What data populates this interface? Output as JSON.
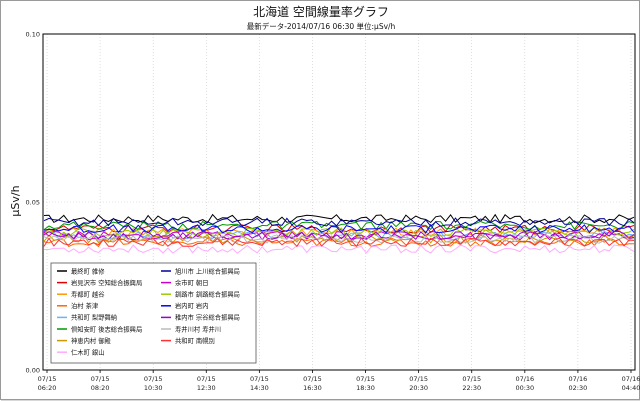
{
  "chart_data": {
    "type": "line",
    "title": "北海道 空間線量率グラフ",
    "subtitle": "最新データ-2014/07/16 06:30 単位:μSv/h",
    "ylabel": "μSv/h",
    "xlabel": "",
    "ylim": [
      0.0,
      0.1
    ],
    "y_ticks": [
      "0.00",
      "0.05",
      "0.10"
    ],
    "x_ticks": [
      {
        "date": "07/15",
        "time": "06:20"
      },
      {
        "date": "07/15",
        "time": "08:20"
      },
      {
        "date": "07/15",
        "time": "10:30"
      },
      {
        "date": "07/15",
        "time": "12:30"
      },
      {
        "date": "07/15",
        "time": "14:30"
      },
      {
        "date": "07/15",
        "time": "16:30"
      },
      {
        "date": "07/15",
        "time": "18:30"
      },
      {
        "date": "07/15",
        "time": "20:30"
      },
      {
        "date": "07/15",
        "time": "22:30"
      },
      {
        "date": "07/16",
        "time": "00:30"
      },
      {
        "date": "07/16",
        "time": "02:30"
      },
      {
        "date": "07/16",
        "time": "04:40"
      }
    ],
    "grid": true,
    "legend_position": "bottom-left",
    "series": [
      {
        "name": "最終町 雑修",
        "color": "#000000",
        "base": 0.045
      },
      {
        "name": "岩見沢市 空知総合振興局",
        "color": "#e00000",
        "base": 0.042
      },
      {
        "name": "寿都町 越谷",
        "color": "#ff9900",
        "base": 0.041
      },
      {
        "name": "泊村 茶津",
        "color": "#ff6600",
        "base": 0.038
      },
      {
        "name": "共和町 梨野舞納",
        "color": "#66b3ff",
        "base": 0.04
      },
      {
        "name": "倶知安町 後志総合振興局",
        "color": "#009900",
        "base": 0.043
      },
      {
        "name": "神恵内村 御殿",
        "color": "#cc9900",
        "base": 0.039
      },
      {
        "name": "仁木町 銀山",
        "color": "#ffaaff",
        "base": 0.036
      },
      {
        "name": "旭川市 上川総合振興局",
        "color": "#000099",
        "base": 0.044
      },
      {
        "name": "余市町 朝日",
        "color": "#cc00cc",
        "base": 0.04
      },
      {
        "name": "釧路市 釧路総合振興局",
        "color": "#99cc00",
        "base": 0.041
      },
      {
        "name": "岩内町 岩内",
        "color": "#0000ff",
        "base": 0.042
      },
      {
        "name": "稚内市 宗谷総合振興局",
        "color": "#9900cc",
        "base": 0.04
      },
      {
        "name": "寿井川村 寿井川",
        "color": "#bbbbbb",
        "base": 0.039
      },
      {
        "name": "共和町 南幌別",
        "color": "#ff3333",
        "base": 0.038
      }
    ],
    "points_per_series": 120
  }
}
